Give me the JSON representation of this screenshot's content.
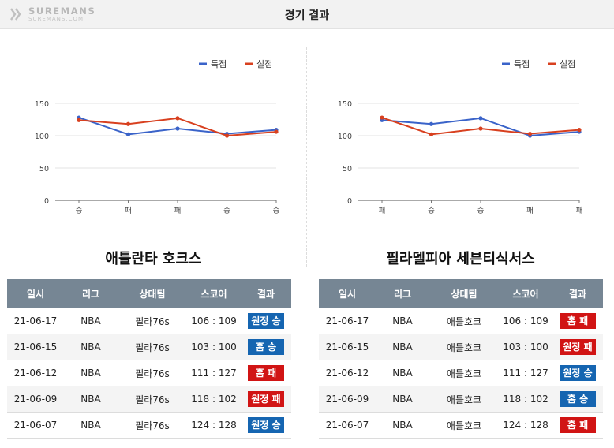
{
  "page": {
    "title": "경기 결과",
    "logo_text": "SUREMANS",
    "logo_sub": "SUREMANS.COM"
  },
  "colors": {
    "score": "#3a63c9",
    "conceded": "#d8401f",
    "badge_win": "#1565b1",
    "badge_loss": "#d11414",
    "table_header": "#768694"
  },
  "chart_data": [
    {
      "type": "line",
      "title": "",
      "categories": [
        "승",
        "패",
        "패",
        "승",
        "승"
      ],
      "series": [
        {
          "name": "득점",
          "values": [
            128,
            102,
            111,
            103,
            109
          ]
        },
        {
          "name": "실점",
          "values": [
            124,
            118,
            127,
            100,
            106
          ]
        }
      ],
      "ylim": [
        0,
        150
      ],
      "yticks": [
        0,
        50,
        100,
        150
      ],
      "grid": true,
      "legend": "top-right"
    },
    {
      "type": "line",
      "title": "",
      "categories": [
        "패",
        "승",
        "승",
        "패",
        "패"
      ],
      "series": [
        {
          "name": "득점",
          "values": [
            124,
            118,
            127,
            100,
            106
          ]
        },
        {
          "name": "실점",
          "values": [
            128,
            102,
            111,
            103,
            109
          ]
        }
      ],
      "ylim": [
        0,
        150
      ],
      "yticks": [
        0,
        50,
        100,
        150
      ],
      "grid": true,
      "legend": "top-right"
    }
  ],
  "teams": [
    {
      "name": "애틀란타 호크스",
      "columns": [
        "일시",
        "리그",
        "상대팀",
        "스코어",
        "결과"
      ],
      "rows": [
        {
          "date": "21-06-17",
          "league": "NBA",
          "opponent": "필라76s",
          "score": "106 : 109",
          "result": "원정 승",
          "kind": "away-win"
        },
        {
          "date": "21-06-15",
          "league": "NBA",
          "opponent": "필라76s",
          "score": "103 : 100",
          "result": "홈 승",
          "kind": "home-win"
        },
        {
          "date": "21-06-12",
          "league": "NBA",
          "opponent": "필라76s",
          "score": "111 : 127",
          "result": "홈 패",
          "kind": "home-loss"
        },
        {
          "date": "21-06-09",
          "league": "NBA",
          "opponent": "필라76s",
          "score": "118 : 102",
          "result": "원정 패",
          "kind": "away-loss"
        },
        {
          "date": "21-06-07",
          "league": "NBA",
          "opponent": "필라76s",
          "score": "124 : 128",
          "result": "원정 승",
          "kind": "away-win"
        }
      ]
    },
    {
      "name": "필라델피아 세븐티식서스",
      "columns": [
        "일시",
        "리그",
        "상대팀",
        "스코어",
        "결과"
      ],
      "rows": [
        {
          "date": "21-06-17",
          "league": "NBA",
          "opponent": "애틀호크",
          "score": "106 : 109",
          "result": "홈 패",
          "kind": "home-loss"
        },
        {
          "date": "21-06-15",
          "league": "NBA",
          "opponent": "애틀호크",
          "score": "103 : 100",
          "result": "원정 패",
          "kind": "away-loss"
        },
        {
          "date": "21-06-12",
          "league": "NBA",
          "opponent": "애틀호크",
          "score": "111 : 127",
          "result": "원정 승",
          "kind": "away-win"
        },
        {
          "date": "21-06-09",
          "league": "NBA",
          "opponent": "애틀호크",
          "score": "118 : 102",
          "result": "홈 승",
          "kind": "home-win"
        },
        {
          "date": "21-06-07",
          "league": "NBA",
          "opponent": "애틀호크",
          "score": "124 : 128",
          "result": "홈 패",
          "kind": "home-loss"
        }
      ]
    }
  ]
}
